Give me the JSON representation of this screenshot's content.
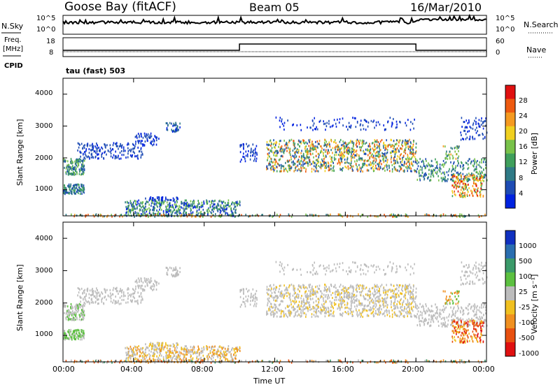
{
  "header": {
    "station": "Goose Bay (fitACF)",
    "beam": "Beam 05",
    "date": "16/Mar/2010"
  },
  "top_panels": {
    "nsky_label": "N.Sky",
    "nsky_tick_hi": "10^5",
    "nsky_tick_lo": "10^0",
    "nsearch_label": "N.Search",
    "freq_label_1": "Freq.",
    "freq_label_2": "[MHz]",
    "freq_tick_hi": "18",
    "freq_tick_lo": "8",
    "nave_tick_hi": "60",
    "nave_tick_lo": "0",
    "nave_label": "Nave",
    "cpid_label": "CPID",
    "cpid_value": "tau (fast) 503"
  },
  "chart_data": [
    {
      "type": "heatmap",
      "name": "power",
      "ylabel": "Slant Range [km]",
      "xlabel": "",
      "ylim": [
        180,
        4500
      ],
      "yticks": [
        "1000",
        "2000",
        "3000",
        "4000"
      ],
      "colorbar_label": "Power [dB]",
      "colorbar_ticks": [
        "4",
        "8",
        "12",
        "16",
        "20",
        "24",
        "28"
      ],
      "colorbar_colors": [
        "#0022e0",
        "#1e4cb4",
        "#2f7a86",
        "#3f9f5c",
        "#79c24a",
        "#f0d020",
        "#f59a20",
        "#ee5a10",
        "#e01010"
      ]
    },
    {
      "type": "heatmap",
      "name": "velocity",
      "ylabel": "Slant Range [km]",
      "xlabel": "Time UT",
      "ylim": [
        180,
        4500
      ],
      "yticks": [
        "1000",
        "2000",
        "3000",
        "4000"
      ],
      "xticks": [
        "00:00",
        "04:00",
        "08:00",
        "12:00",
        "16:00",
        "20:00",
        "00:00"
      ],
      "colorbar_label": "Velocity [m s⁻¹]",
      "colorbar_ticks": [
        "1000",
        "500",
        "100",
        "25",
        "-25",
        "-100",
        "-500",
        "-1000"
      ],
      "colorbar_colors": [
        "#1030c0",
        "#2a6eb0",
        "#3b9a6a",
        "#5cc040",
        "#bcbcbc",
        "#f0c020",
        "#f09020",
        "#e85010",
        "#e01010"
      ]
    }
  ]
}
